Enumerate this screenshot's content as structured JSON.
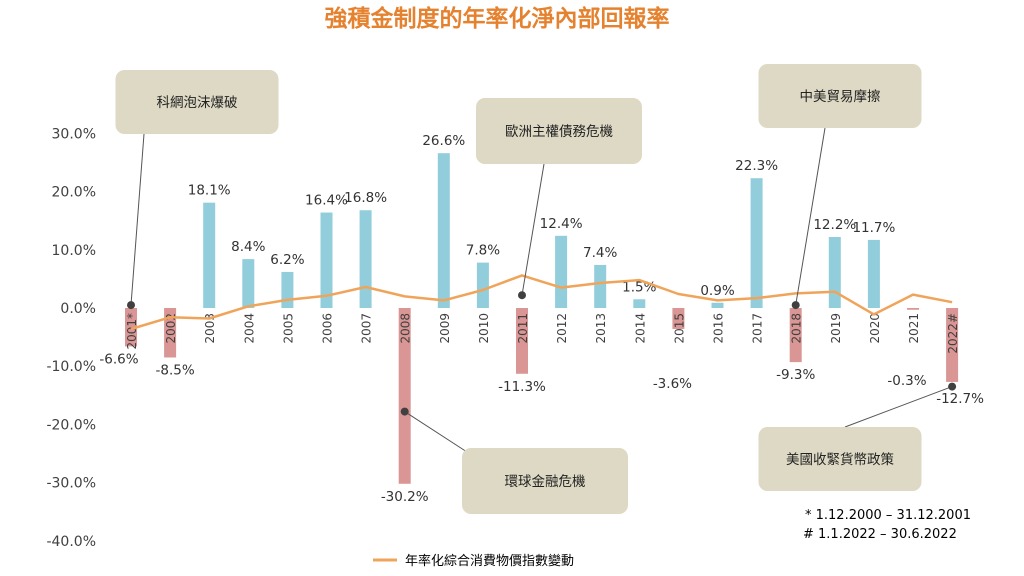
{
  "colors": {
    "title": "#E5822F",
    "positive_bar": "#92CDDC",
    "negative_bar": "#D99694",
    "cpi_line": "#F0A45A",
    "callout_bg": "#DDD9C4",
    "axis_text": "#404040"
  },
  "chart_data": {
    "type": "bar",
    "title": "強積金制度的年率化淨內部回報率",
    "categories": [
      "2001*",
      "2002",
      "2003",
      "2004",
      "2005",
      "2006",
      "2007",
      "2008",
      "2009",
      "2010",
      "2011",
      "2012",
      "2013",
      "2014",
      "2015",
      "2016",
      "2017",
      "2018",
      "2019",
      "2020",
      "2021",
      "2022#"
    ],
    "series": [
      {
        "kind": "bar",
        "values": [
          -6.6,
          -8.5,
          18.1,
          8.4,
          6.2,
          16.4,
          16.8,
          -30.2,
          26.6,
          7.8,
          -11.3,
          12.4,
          7.4,
          1.5,
          -3.6,
          0.9,
          22.3,
          -9.3,
          12.2,
          11.7,
          -0.3,
          -12.7
        ],
        "labels": [
          "-6.6%",
          "-8.5%",
          "18.1%",
          "8.4%",
          "6.2%",
          "16.4%",
          "16.8%",
          "-30.2%",
          "26.6%",
          "7.8%",
          "-11.3%",
          "12.4%",
          "7.4%",
          "1.5%",
          "-3.6%",
          "0.9%",
          "22.3%",
          "-9.3%",
          "12.2%",
          "11.7%",
          "-0.3%",
          "-12.7%"
        ]
      },
      {
        "kind": "line",
        "name": "年率化綜合消費物價指數變動",
        "values": [
          -3.6,
          -1.6,
          -1.8,
          0.3,
          1.4,
          2.1,
          3.6,
          2.0,
          1.3,
          3.1,
          5.6,
          3.5,
          4.3,
          4.8,
          2.4,
          1.3,
          1.7,
          2.5,
          2.8,
          -1.1,
          2.3,
          1.0
        ]
      }
    ],
    "ylim": [
      -40,
      30
    ],
    "yticks": [
      "-40.0%",
      "-30.0%",
      "-20.0%",
      "-10.0%",
      "0.0%",
      "10.0%",
      "20.0%",
      "30.0%"
    ],
    "ytick_values": [
      -40,
      -30,
      -20,
      -10,
      0,
      10,
      20,
      30
    ],
    "legend_position": "bottom-center",
    "grid": false,
    "annotations": [
      {
        "text": "科網泡沫爆破",
        "category": "2001*",
        "y": 0.5
      },
      {
        "text": "歐洲主權債務危機",
        "category": "2011",
        "y": 2.2
      },
      {
        "text": "中美貿易摩擦",
        "category": "2018",
        "y": 0.5
      },
      {
        "text": "環球金融危機",
        "category": "2008",
        "y": -17.8
      },
      {
        "text": "美國收緊貨幣政策",
        "category": "2022#",
        "y": -13.5
      }
    ],
    "footnotes": [
      "* 1.12.2000 – 31.12.2001",
      "# 1.1.2022 – 30.6.2022"
    ]
  }
}
